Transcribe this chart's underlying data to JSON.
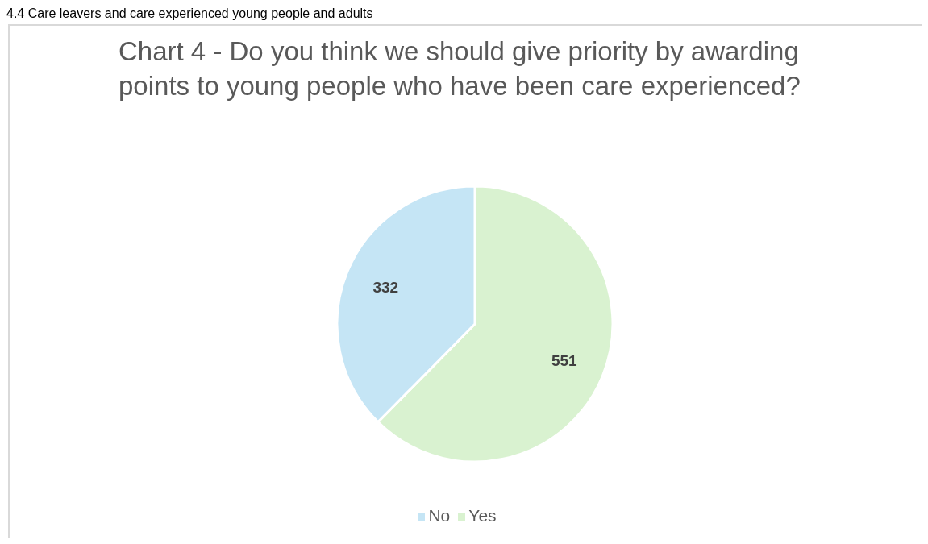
{
  "chart_data": {
    "type": "pie",
    "title": "Chart 4 - Do you think we should give priority by awarding points to young people who have been care experienced?",
    "annotations": [
      "4.4 Care leavers and care experienced young people and adults"
    ],
    "categories": [
      "Yes",
      "No"
    ],
    "values": [
      551,
      332
    ],
    "colors": [
      "#d9f2d0",
      "#c5e5f5"
    ],
    "data_labels": true,
    "legend": "bottom"
  }
}
